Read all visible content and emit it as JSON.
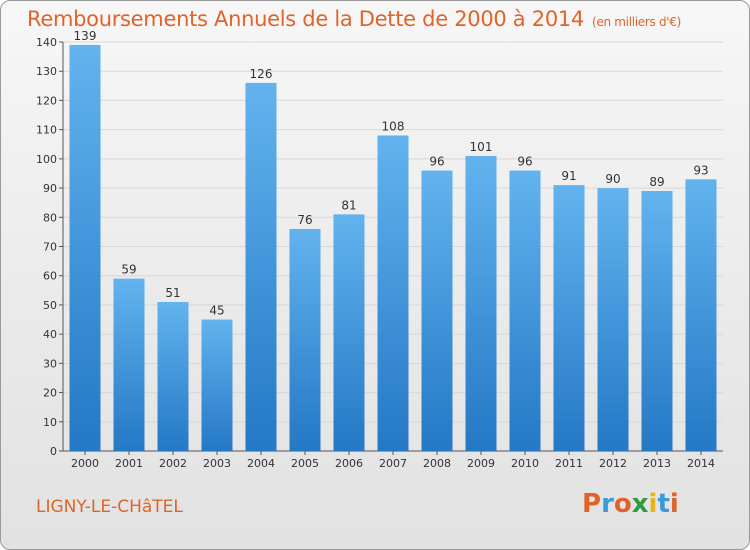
{
  "chart_data": {
    "type": "bar",
    "title": "Remboursements Annuels de la Dette de 2000 à 2014",
    "subtitle": "(en milliers d'€)",
    "categories": [
      "2000",
      "2001",
      "2002",
      "2003",
      "2004",
      "2005",
      "2006",
      "2007",
      "2008",
      "2009",
      "2010",
      "2011",
      "2012",
      "2013",
      "2014"
    ],
    "values": [
      139,
      59,
      51,
      45,
      126,
      76,
      81,
      108,
      96,
      101,
      96,
      91,
      90,
      89,
      93
    ],
    "ylim": [
      0,
      140
    ],
    "yticks": [
      0,
      10,
      20,
      30,
      40,
      50,
      60,
      70,
      80,
      90,
      100,
      110,
      120,
      130,
      140
    ],
    "grid": true,
    "bar_color": "#3d9be0"
  },
  "footer": {
    "commune": "LIGNY-LE-CHâTEL",
    "logo": "Proxiti"
  },
  "colors": {
    "title": "#e0642a",
    "logo_letters": [
      "#e0642a",
      "#3a9bd8",
      "#e0642a",
      "#2d9c3f",
      "#e8b41a",
      "#3a9bd8",
      "#e0642a"
    ]
  }
}
